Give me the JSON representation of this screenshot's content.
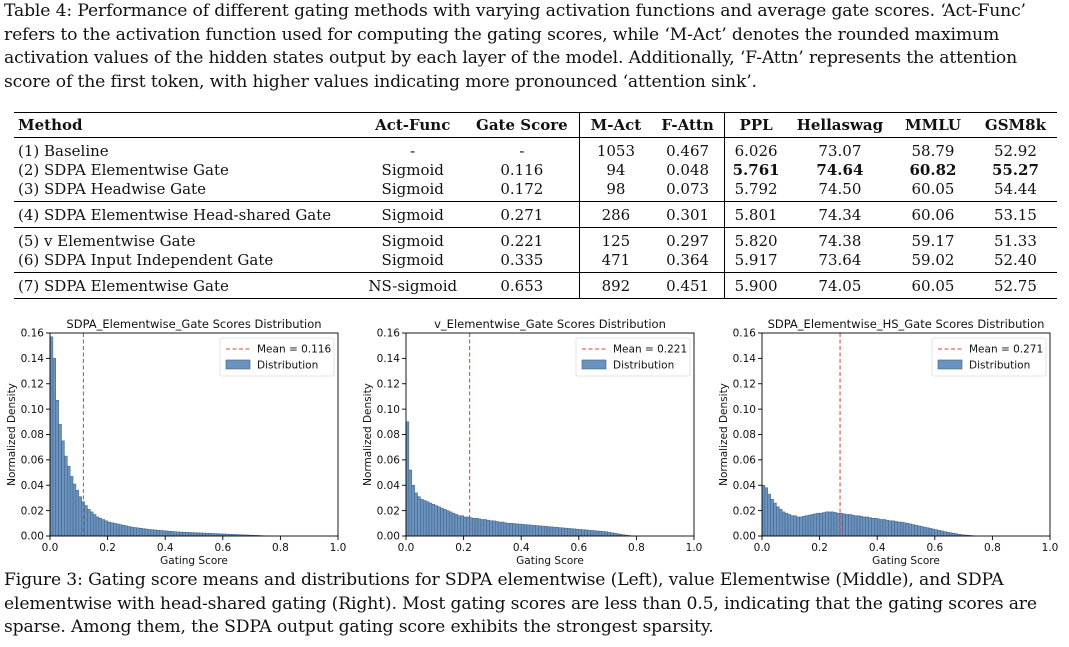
{
  "table_caption": {
    "label": "Table 4:",
    "text": "Performance of different gating methods with varying activation functions and average gate scores. ‘Act-Func’ refers to the activation function used for computing the gating scores, while ‘M-Act’ denotes the rounded maximum activation values of the hidden states output by each layer of the model. Additionally, ‘F-Attn’ represents the attention score of the first token, with higher values indicating more pronounced ‘attention sink’."
  },
  "table": {
    "headers": [
      "Method",
      "Act-Func",
      "Gate Score",
      "M-Act",
      "F-Attn",
      "PPL",
      "Hellaswag",
      "MMLU",
      "GSM8k"
    ],
    "groups": [
      [
        {
          "method": "(1) Baseline",
          "act": "-",
          "gate": "-",
          "mact": "1053",
          "fattn": "0.467",
          "ppl": "6.026",
          "hella": "73.07",
          "mmlu": "58.79",
          "gsm": "52.92"
        },
        {
          "method": "(2) SDPA Elementwise Gate",
          "act": "Sigmoid",
          "gate": "0.116",
          "mact": "94",
          "fattn": "0.048",
          "ppl": "5.761",
          "hella": "74.64",
          "mmlu": "60.82",
          "gsm": "55.27"
        },
        {
          "method": "(3) SDPA Headwise Gate",
          "act": "Sigmoid",
          "gate": "0.172",
          "mact": "98",
          "fattn": "0.073",
          "ppl": "5.792",
          "hella": "74.50",
          "mmlu": "60.05",
          "gsm": "54.44"
        }
      ],
      [
        {
          "method": "(4) SDPA Elementwise Head-shared Gate",
          "act": "Sigmoid",
          "gate": "0.271",
          "mact": "286",
          "fattn": "0.301",
          "ppl": "5.801",
          "hella": "74.34",
          "mmlu": "60.06",
          "gsm": "53.15"
        }
      ],
      [
        {
          "method": "(5) v Elementwise Gate",
          "act": "Sigmoid",
          "gate": "0.221",
          "mact": "125",
          "fattn": "0.297",
          "ppl": "5.820",
          "hella": "74.38",
          "mmlu": "59.17",
          "gsm": "51.33"
        },
        {
          "method": "(6) SDPA Input Independent Gate",
          "act": "Sigmoid",
          "gate": "0.335",
          "mact": "471",
          "fattn": "0.364",
          "ppl": "5.917",
          "hella": "73.64",
          "mmlu": "59.02",
          "gsm": "52.40"
        }
      ],
      [
        {
          "method": "(7) SDPA Elementwise Gate",
          "act": "NS-sigmoid",
          "gate": "0.653",
          "mact": "892",
          "fattn": "0.451",
          "ppl": "5.900",
          "hella": "74.05",
          "mmlu": "60.05",
          "gsm": "52.75"
        }
      ]
    ],
    "bold_cells": [
      [
        0,
        1,
        "ppl"
      ],
      [
        0,
        1,
        "hella"
      ],
      [
        0,
        1,
        "mmlu"
      ],
      [
        0,
        1,
        "gsm"
      ]
    ]
  },
  "chart_data": [
    {
      "type": "bar",
      "title": "SDPA_Elementwise_Gate Scores Distribution",
      "xlabel": "Gating Score",
      "ylabel": "Normalized Density",
      "xlim": [
        0.0,
        1.0
      ],
      "ylim": [
        0.0,
        0.16
      ],
      "xticks": [
        "0.0",
        "0.2",
        "0.4",
        "0.6",
        "0.8",
        "1.0"
      ],
      "yticks": [
        "0.00",
        "0.02",
        "0.04",
        "0.06",
        "0.08",
        "0.10",
        "0.12",
        "0.14",
        "0.16"
      ],
      "bin_width": 0.01,
      "values": [
        0.157,
        0.14,
        0.107,
        0.088,
        0.075,
        0.063,
        0.055,
        0.047,
        0.041,
        0.036,
        0.031,
        0.027,
        0.024,
        0.021,
        0.019,
        0.017,
        0.015,
        0.014,
        0.013,
        0.012,
        0.011,
        0.0105,
        0.01,
        0.0095,
        0.009,
        0.0085,
        0.008,
        0.0075,
        0.007,
        0.0067,
        0.0064,
        0.0061,
        0.0058,
        0.0055,
        0.0052,
        0.005,
        0.0048,
        0.0046,
        0.0044,
        0.0042,
        0.004,
        0.0038,
        0.0036,
        0.0034,
        0.0032,
        0.0031,
        0.003,
        0.0029,
        0.0028,
        0.0027,
        0.0026,
        0.0025,
        0.0024,
        0.0023,
        0.0022,
        0.0021,
        0.002,
        0.0019,
        0.0018,
        0.0017,
        0.0016,
        0.0015,
        0.0014,
        0.0013,
        0.0012,
        0.0011,
        0.001,
        0.0009,
        0.0008,
        0.0007,
        0.0006,
        0.0005,
        0.0004,
        0.0003,
        0.0002,
        0.0001
      ],
      "mean": 0.116,
      "legend": {
        "mean_label": "Mean = 0.116",
        "dist_label": "Distribution",
        "position": "top-right"
      },
      "colors": {
        "bar": "#6b93bf",
        "bar_edge": "#3f5e80",
        "mean_line": "#e03c3c"
      }
    },
    {
      "type": "bar",
      "title": "v_Elementwise_Gate Scores Distribution",
      "xlabel": "Gating Score",
      "ylabel": "Normalized Density",
      "xlim": [
        0.0,
        1.0
      ],
      "ylim": [
        0.0,
        0.16
      ],
      "xticks": [
        "0.0",
        "0.2",
        "0.4",
        "0.6",
        "0.8",
        "1.0"
      ],
      "yticks": [
        "0.00",
        "0.02",
        "0.04",
        "0.06",
        "0.08",
        "0.10",
        "0.12",
        "0.14",
        "0.16"
      ],
      "bin_width": 0.01,
      "values": [
        0.09,
        0.052,
        0.04,
        0.034,
        0.031,
        0.029,
        0.028,
        0.027,
        0.026,
        0.025,
        0.024,
        0.023,
        0.022,
        0.021,
        0.02,
        0.019,
        0.018,
        0.017,
        0.016,
        0.016,
        0.015,
        0.015,
        0.0145,
        0.014,
        0.014,
        0.0135,
        0.013,
        0.013,
        0.0125,
        0.012,
        0.012,
        0.0115,
        0.011,
        0.011,
        0.0105,
        0.01,
        0.01,
        0.0098,
        0.0096,
        0.0094,
        0.0092,
        0.009,
        0.0088,
        0.0086,
        0.0084,
        0.0082,
        0.008,
        0.0078,
        0.0076,
        0.0074,
        0.0072,
        0.007,
        0.0068,
        0.0066,
        0.0064,
        0.0062,
        0.006,
        0.0058,
        0.0056,
        0.0054,
        0.0052,
        0.005,
        0.0048,
        0.0046,
        0.0044,
        0.0042,
        0.004,
        0.0038,
        0.0036,
        0.0034,
        0.003,
        0.0026,
        0.0022,
        0.0018,
        0.0014,
        0.001,
        0.0007,
        0.0004,
        0.0002
      ],
      "mean": 0.221,
      "legend": {
        "mean_label": "Mean = 0.221",
        "dist_label": "Distribution",
        "position": "top-right"
      },
      "colors": {
        "bar": "#6b93bf",
        "bar_edge": "#3f5e80",
        "mean_line": "#e03c3c"
      }
    },
    {
      "type": "bar",
      "title": "SDPA_Elementwise_HS_Gate Scores Distribution",
      "xlabel": "Gating Score",
      "ylabel": "Normalized Density",
      "xlim": [
        0.0,
        1.0
      ],
      "ylim": [
        0.0,
        0.16
      ],
      "xticks": [
        "0.0",
        "0.2",
        "0.4",
        "0.6",
        "0.8",
        "1.0"
      ],
      "yticks": [
        "0.00",
        "0.02",
        "0.04",
        "0.06",
        "0.08",
        "0.10",
        "0.12",
        "0.14",
        "0.16"
      ],
      "bin_width": 0.01,
      "values": [
        0.04,
        0.038,
        0.033,
        0.029,
        0.026,
        0.023,
        0.021,
        0.019,
        0.018,
        0.017,
        0.016,
        0.016,
        0.015,
        0.015,
        0.0155,
        0.016,
        0.0165,
        0.017,
        0.0175,
        0.018,
        0.018,
        0.0185,
        0.019,
        0.019,
        0.019,
        0.0185,
        0.018,
        0.018,
        0.0175,
        0.017,
        0.017,
        0.0165,
        0.016,
        0.016,
        0.0155,
        0.015,
        0.015,
        0.0145,
        0.014,
        0.014,
        0.0135,
        0.013,
        0.013,
        0.0125,
        0.012,
        0.012,
        0.0115,
        0.011,
        0.011,
        0.0105,
        0.01,
        0.0095,
        0.009,
        0.0085,
        0.008,
        0.0075,
        0.007,
        0.0065,
        0.006,
        0.0055,
        0.005,
        0.0045,
        0.004,
        0.0035,
        0.003,
        0.0026,
        0.0022,
        0.0018,
        0.0014,
        0.001,
        0.0008,
        0.0006,
        0.0004,
        0.0002
      ],
      "mean": 0.271,
      "legend": {
        "mean_label": "Mean = 0.271",
        "dist_label": "Distribution",
        "position": "top-right"
      },
      "colors": {
        "bar": "#6b93bf",
        "bar_edge": "#3f5e80",
        "mean_line": "#e03c3c"
      }
    }
  ],
  "figure_caption": {
    "label": "Figure 3:",
    "text": "Gating score means and distributions for SDPA elementwise (Left), value Elementwise (Middle), and SDPA elementwise with head-shared gating (Right). Most gating scores are less than 0.5, indicating that the gating scores are sparse. Among them, the SDPA output gating score exhibits the strongest sparsity."
  }
}
